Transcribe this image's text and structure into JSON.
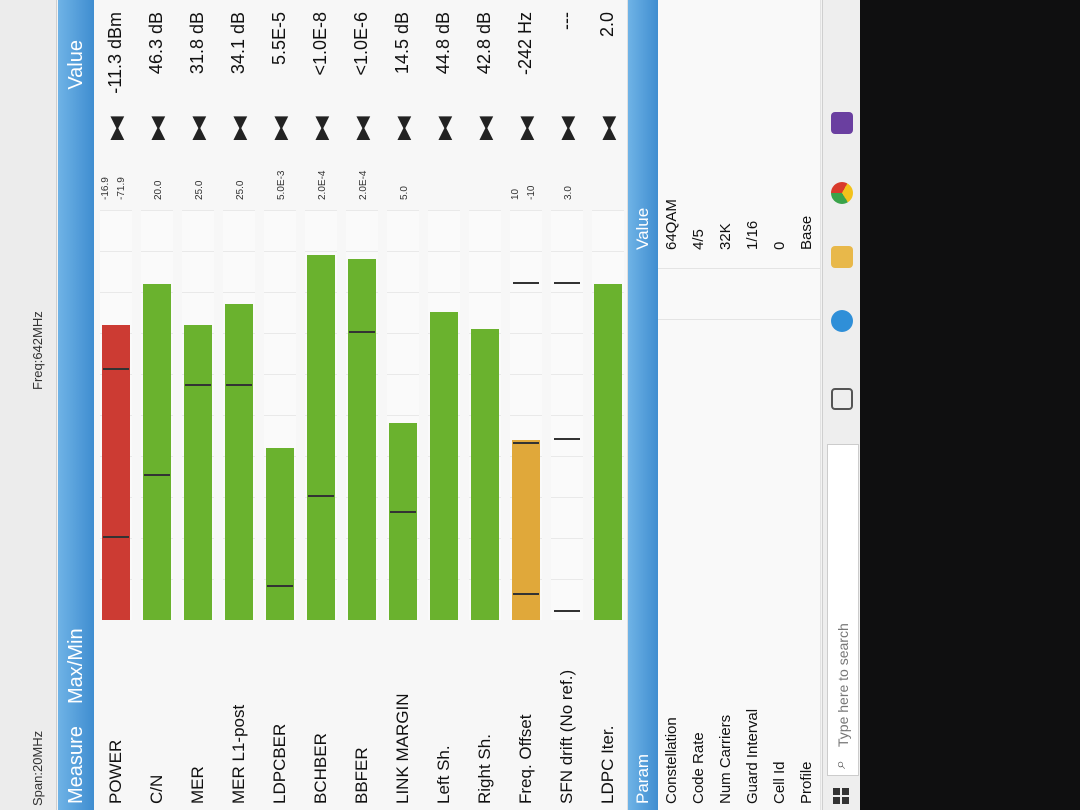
{
  "top": {
    "span": "Span:20MHz",
    "freq": "Freq:642MHz"
  },
  "headers": {
    "measure": "Measure",
    "maxmin": "Max/Min",
    "value": "Value"
  },
  "measures": [
    {
      "name": "POWER",
      "level": 0.72,
      "color": "#cc3b33",
      "ticks": [
        0.61,
        0.2
      ],
      "maxmin": [
        "-16.9",
        "-71.9"
      ],
      "value": "-11.3 dBm"
    },
    {
      "name": "C/N",
      "level": 0.82,
      "color": "#6ab22e",
      "ticks": [
        0.35
      ],
      "maxmin": [
        "20.0"
      ],
      "value": "46.3 dB"
    },
    {
      "name": "MER",
      "level": 0.72,
      "color": "#6ab22e",
      "ticks": [
        0.57
      ],
      "maxmin": [
        "25.0"
      ],
      "value": "31.8 dB"
    },
    {
      "name": "MER L1-post",
      "level": 0.77,
      "color": "#6ab22e",
      "ticks": [
        0.57
      ],
      "maxmin": [
        "25.0"
      ],
      "value": "34.1 dB"
    },
    {
      "name": "LDPCBER",
      "level": 0.42,
      "color": "#6ab22e",
      "ticks": [
        0.08
      ],
      "maxmin": [
        "5.0E-3"
      ],
      "value": "5.5E-5"
    },
    {
      "name": "BCHBER",
      "level": 0.89,
      "color": "#6ab22e",
      "ticks": [
        0.3
      ],
      "maxmin": [
        "2.0E-4"
      ],
      "value": "<1.0E-8"
    },
    {
      "name": "BBFER",
      "level": 0.88,
      "color": "#6ab22e",
      "ticks": [
        0.7
      ],
      "maxmin": [
        "2.0E-4"
      ],
      "value": "<1.0E-6"
    },
    {
      "name": "LINK MARGIN",
      "level": 0.48,
      "color": "#6ab22e",
      "ticks": [
        0.26
      ],
      "maxmin": [
        "5.0"
      ],
      "value": "14.5 dB"
    },
    {
      "name": "Left Sh.",
      "level": 0.75,
      "color": "#6ab22e",
      "ticks": [],
      "maxmin": [],
      "value": "44.8 dB"
    },
    {
      "name": "Right Sh.",
      "level": 0.71,
      "color": "#6ab22e",
      "ticks": [],
      "maxmin": [],
      "value": "42.8 dB"
    },
    {
      "name": "Freq. Offset",
      "level": 0.44,
      "color": "#e0a83a",
      "ticks": [
        0.06,
        0.43,
        0.82
      ],
      "maxmin": [
        "10",
        "-10"
      ],
      "value": "-242 Hz"
    },
    {
      "name": "SFN drift (No ref.)",
      "level": 0,
      "color": "#6ab22e",
      "ticks": [
        0.02,
        0.44,
        0.82
      ],
      "maxmin": [
        "3.0"
      ],
      "value": "---"
    },
    {
      "name": "LDPC Iter.",
      "level": 0.82,
      "color": "#6ab22e",
      "ticks": [],
      "maxmin": [],
      "value": "2.0"
    }
  ],
  "param_headers": {
    "param": "Param",
    "value": "Value"
  },
  "params": [
    {
      "name": "Constellation",
      "value": "64QAM"
    },
    {
      "name": "Code Rate",
      "value": "4/5"
    },
    {
      "name": "Num Carriers",
      "value": "32K"
    },
    {
      "name": "Guard Interval",
      "value": "1/16"
    },
    {
      "name": "Cell Id",
      "value": "0"
    },
    {
      "name": "Profile",
      "value": "Base"
    }
  ],
  "taskbar": {
    "search_placeholder": "Type here to search",
    "search_glyph": "⌕"
  },
  "icons": {
    "triangles": "▶◀"
  }
}
